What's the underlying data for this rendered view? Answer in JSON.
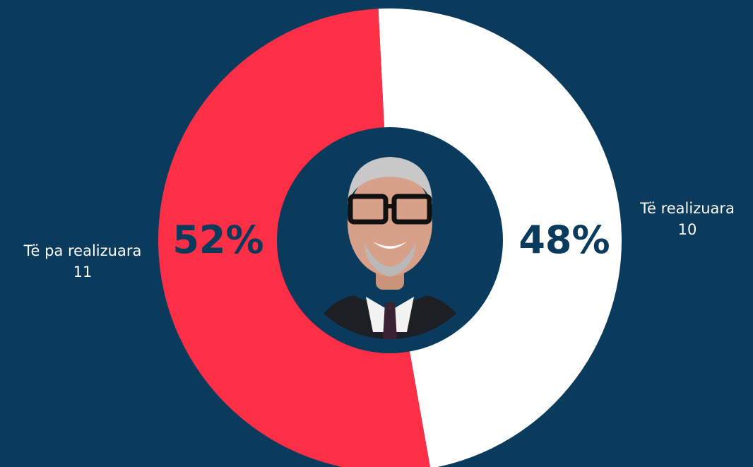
{
  "chart_data": {
    "type": "pie",
    "variant": "donut",
    "start": "top",
    "direction": "clockwise",
    "slices": [
      {
        "label": "Të realizuara",
        "count": "10",
        "value": 48,
        "pct_label": "48%",
        "color": "#ffffff",
        "text_color": "#0a3a5c"
      },
      {
        "label": "Të pa realizuara",
        "count": "11",
        "value": 52,
        "pct_label": "52%",
        "color": "#fc2f46",
        "text_color": "#0a3a5c"
      }
    ]
  },
  "colors": {
    "background": "#0a3a5c"
  },
  "center_icon": "portrait-photo"
}
